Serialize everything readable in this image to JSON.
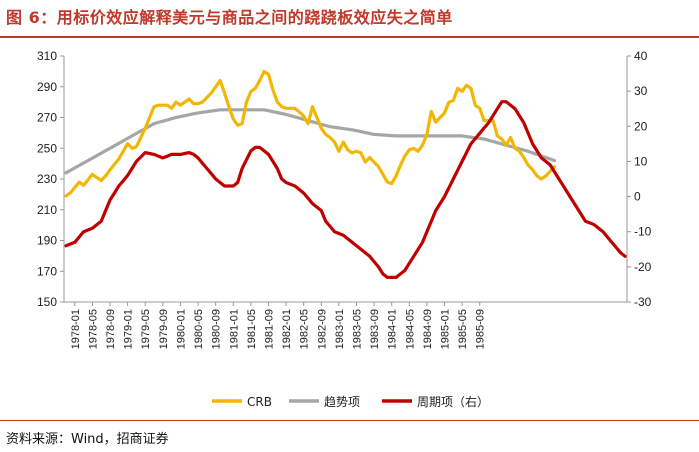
{
  "title": "图 6：用标价效应解释美元与商品之间的跷跷板效应失之简单",
  "source": "资料来源：Wind，招商证券",
  "chart_data": {
    "type": "line",
    "x": [
      "1978-01",
      "1978-05",
      "1978-09",
      "1979-01",
      "1979-05",
      "1979-09",
      "1980-01",
      "1980-05",
      "1980-09",
      "1981-01",
      "1981-05",
      "1981-09",
      "1982-01",
      "1982-05",
      "1982-09",
      "1983-01",
      "1983-05",
      "1983-09",
      "1984-01",
      "1984-05",
      "1984-09",
      "1985-01",
      "1985-05",
      "1985-09"
    ],
    "months": 100,
    "ylim_left": [
      150,
      310
    ],
    "yticks_left": [
      150,
      170,
      190,
      210,
      230,
      250,
      270,
      290,
      310
    ],
    "ylim_right": [
      -30,
      40
    ],
    "yticks_right": [
      -30,
      -20,
      -10,
      0,
      10,
      20,
      30,
      40
    ],
    "legend": [
      "CRB",
      "趋势项",
      "周期项（右）"
    ],
    "series": [
      {
        "name": "CRB",
        "axis": "left",
        "color": "#f2b705",
        "keypoints": [
          [
            0,
            219
          ],
          [
            1,
            221
          ],
          [
            3,
            228
          ],
          [
            4,
            226
          ],
          [
            6,
            233
          ],
          [
            8,
            229
          ],
          [
            9,
            232
          ],
          [
            10,
            236
          ],
          [
            12,
            243
          ],
          [
            14,
            253
          ],
          [
            15,
            250
          ],
          [
            16,
            251
          ],
          [
            18,
            263
          ],
          [
            20,
            277
          ],
          [
            21,
            278
          ],
          [
            23,
            278
          ],
          [
            24,
            276
          ],
          [
            25,
            280
          ],
          [
            26,
            278
          ],
          [
            28,
            282
          ],
          [
            29,
            279
          ],
          [
            30,
            279
          ],
          [
            31,
            280
          ],
          [
            33,
            286
          ],
          [
            35,
            294
          ],
          [
            36,
            286
          ],
          [
            37,
            277
          ],
          [
            38,
            269
          ],
          [
            39,
            265
          ],
          [
            40,
            266
          ],
          [
            41,
            280
          ],
          [
            42,
            287
          ],
          [
            43,
            289
          ],
          [
            44,
            294
          ],
          [
            45,
            300
          ],
          [
            46,
            298
          ],
          [
            47,
            288
          ],
          [
            48,
            280
          ],
          [
            49,
            277
          ],
          [
            50,
            276
          ],
          [
            52,
            276
          ],
          [
            54,
            271
          ],
          [
            55,
            266
          ],
          [
            56,
            277
          ],
          [
            57,
            270
          ],
          [
            58,
            263
          ],
          [
            59,
            259
          ],
          [
            60,
            257
          ],
          [
            61,
            254
          ],
          [
            62,
            248
          ],
          [
            63,
            254
          ],
          [
            64,
            249
          ],
          [
            65,
            247
          ],
          [
            66,
            248
          ],
          [
            67,
            247
          ],
          [
            68,
            241
          ],
          [
            69,
            244
          ],
          [
            70,
            241
          ],
          [
            71,
            238
          ],
          [
            72,
            233
          ],
          [
            73,
            228
          ],
          [
            74,
            227
          ],
          [
            75,
            232
          ],
          [
            76,
            239
          ],
          [
            77,
            245
          ],
          [
            78,
            249
          ],
          [
            79,
            250
          ],
          [
            80,
            248
          ],
          [
            81,
            252
          ],
          [
            82,
            259
          ],
          [
            83,
            274
          ],
          [
            84,
            267
          ],
          [
            85,
            270
          ],
          [
            86,
            273
          ],
          [
            87,
            280
          ],
          [
            88,
            281
          ],
          [
            89,
            289
          ],
          [
            90,
            287
          ],
          [
            91,
            291
          ],
          [
            92,
            289
          ],
          [
            93,
            278
          ],
          [
            94,
            276
          ],
          [
            95,
            268
          ],
          [
            96,
            268
          ],
          [
            97,
            268
          ],
          [
            98,
            258
          ],
          [
            99,
            256
          ],
          [
            100,
            252
          ],
          [
            101,
            257
          ],
          [
            102,
            250
          ],
          [
            103,
            248
          ],
          [
            104,
            244
          ],
          [
            105,
            239
          ],
          [
            106,
            236
          ],
          [
            107,
            232
          ],
          [
            108,
            230
          ],
          [
            109,
            232
          ],
          [
            110,
            235
          ],
          [
            111,
            238
          ]
        ]
      },
      {
        "name": "趋势项",
        "axis": "left",
        "color": "#a6a6a6",
        "keypoints": [
          [
            0,
            234
          ],
          [
            5,
            242
          ],
          [
            10,
            250
          ],
          [
            15,
            258
          ],
          [
            20,
            266
          ],
          [
            25,
            270
          ],
          [
            30,
            273
          ],
          [
            35,
            275
          ],
          [
            40,
            275
          ],
          [
            45,
            275
          ],
          [
            50,
            272
          ],
          [
            55,
            268
          ],
          [
            60,
            264
          ],
          [
            65,
            262
          ],
          [
            70,
            259
          ],
          [
            75,
            258
          ],
          [
            80,
            258
          ],
          [
            85,
            258
          ],
          [
            90,
            258
          ],
          [
            95,
            256
          ],
          [
            100,
            252
          ],
          [
            105,
            248
          ],
          [
            110,
            243
          ],
          [
            111,
            242
          ]
        ]
      },
      {
        "name": "周期项（右）",
        "axis": "right",
        "color": "#c00000",
        "keypoints": [
          [
            0,
            -14
          ],
          [
            2,
            -13
          ],
          [
            4,
            -10
          ],
          [
            6,
            -9
          ],
          [
            8,
            -7
          ],
          [
            10,
            -1
          ],
          [
            12,
            3
          ],
          [
            14,
            6
          ],
          [
            16,
            10
          ],
          [
            18,
            12.5
          ],
          [
            20,
            12
          ],
          [
            22,
            11
          ],
          [
            24,
            12
          ],
          [
            26,
            12
          ],
          [
            28,
            12.5
          ],
          [
            29,
            12
          ],
          [
            30,
            11
          ],
          [
            32,
            8
          ],
          [
            34,
            5
          ],
          [
            36,
            3
          ],
          [
            38,
            3
          ],
          [
            39,
            4
          ],
          [
            40,
            8
          ],
          [
            42,
            13
          ],
          [
            43,
            14
          ],
          [
            44,
            14
          ],
          [
            46,
            12
          ],
          [
            48,
            8
          ],
          [
            49,
            5
          ],
          [
            50,
            4
          ],
          [
            52,
            3
          ],
          [
            54,
            1
          ],
          [
            56,
            -2
          ],
          [
            58,
            -4
          ],
          [
            59,
            -7
          ],
          [
            61,
            -10
          ],
          [
            63,
            -11
          ],
          [
            65,
            -13
          ],
          [
            67,
            -15
          ],
          [
            69,
            -17
          ],
          [
            71,
            -20
          ],
          [
            72,
            -22
          ],
          [
            73,
            -23
          ],
          [
            75,
            -23
          ],
          [
            77,
            -21
          ],
          [
            79,
            -17
          ],
          [
            81,
            -13
          ],
          [
            82,
            -10
          ],
          [
            83,
            -7
          ],
          [
            84,
            -4
          ],
          [
            86,
            0
          ],
          [
            88,
            5
          ],
          [
            90,
            10
          ],
          [
            92,
            15
          ],
          [
            94,
            18
          ],
          [
            96,
            21
          ],
          [
            98,
            25
          ],
          [
            99,
            27
          ],
          [
            100,
            27
          ],
          [
            101,
            26
          ],
          [
            102,
            25
          ],
          [
            104,
            21
          ],
          [
            106,
            15
          ],
          [
            108,
            11
          ],
          [
            110,
            9
          ],
          [
            112,
            5
          ],
          [
            114,
            1
          ],
          [
            116,
            -3
          ],
          [
            118,
            -7
          ],
          [
            120,
            -8
          ],
          [
            122,
            -10
          ],
          [
            124,
            -13
          ],
          [
            126,
            -16
          ],
          [
            127,
            -17
          ]
        ]
      }
    ]
  }
}
